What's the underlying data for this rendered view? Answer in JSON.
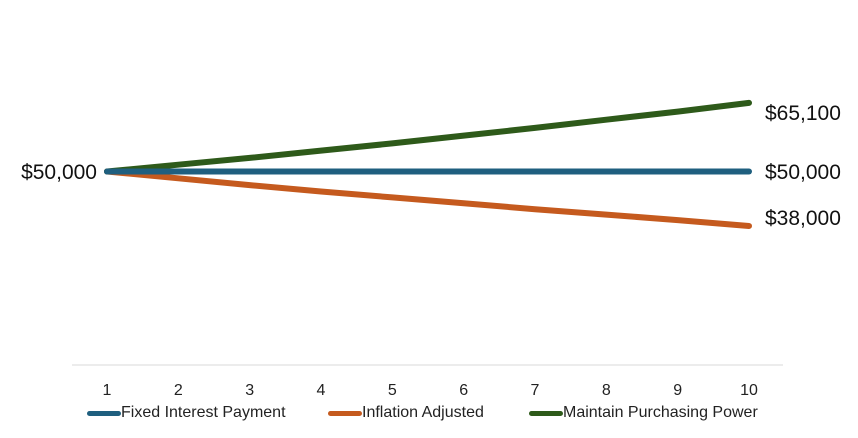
{
  "chart_data": {
    "type": "line",
    "x": [
      1,
      2,
      3,
      4,
      5,
      6,
      7,
      8,
      9,
      10
    ],
    "series": [
      {
        "name": "Fixed Interest Payment",
        "color": "#1f5f7f",
        "values": [
          50000,
          50000,
          50000,
          50000,
          50000,
          50000,
          50000,
          50000,
          50000,
          50000
        ]
      },
      {
        "name": "Inflation Adjusted",
        "color": "#c55a1e",
        "values": [
          50000,
          48500,
          47000,
          45600,
          44300,
          43000,
          41700,
          40500,
          39300,
          38000
        ]
      },
      {
        "name": "Maintain Purchasing Power",
        "color": "#2e5a1a",
        "values": [
          50000,
          51500,
          53000,
          54600,
          56200,
          57900,
          59600,
          61400,
          63200,
          65100
        ]
      }
    ],
    "data_labels": {
      "start": "$50,000",
      "end": [
        "$50,000",
        "$38,000",
        "$65,100"
      ]
    },
    "ylim": [
      25000,
      75000
    ],
    "grid": false,
    "legend": "bottom"
  }
}
